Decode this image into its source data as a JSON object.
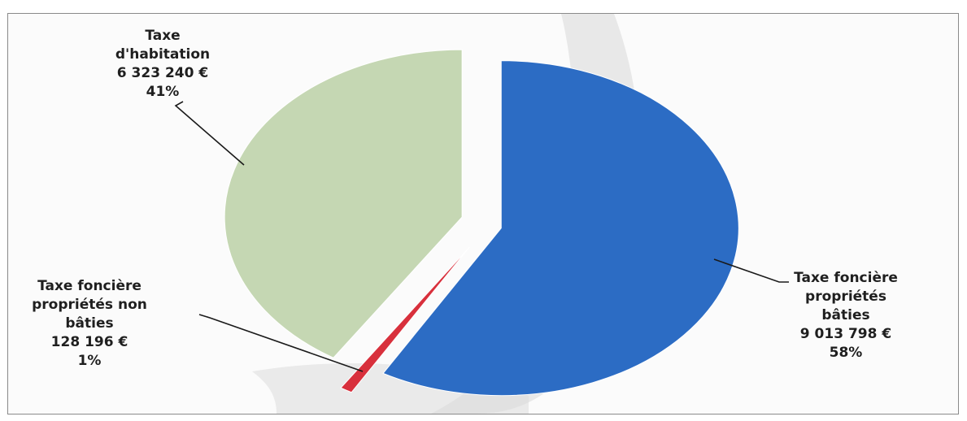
{
  "chart_data": {
    "type": "pie",
    "title": "",
    "slices": [
      {
        "name_lines": [
          "Taxe",
          "d'habitation"
        ],
        "value": 6323240,
        "value_label": "6 323 240 €",
        "percent": 41,
        "percent_label": "41%",
        "color": "#c5d7b3"
      },
      {
        "name_lines": [
          "Taxe foncière",
          "propriétés non",
          "bâties"
        ],
        "value": 128196,
        "value_label": "128 196 €",
        "percent": 1,
        "percent_label": "1%",
        "color": "#d8303c"
      },
      {
        "name_lines": [
          "Taxe foncière",
          "propriétés",
          "bâties"
        ],
        "value": 9013798,
        "value_label": "9 013 798 €",
        "percent": 58,
        "percent_label": "58%",
        "color": "#2c6cc4"
      }
    ],
    "exploded": true,
    "legend": "none",
    "data_labels": "outside-with-leader-lines"
  }
}
